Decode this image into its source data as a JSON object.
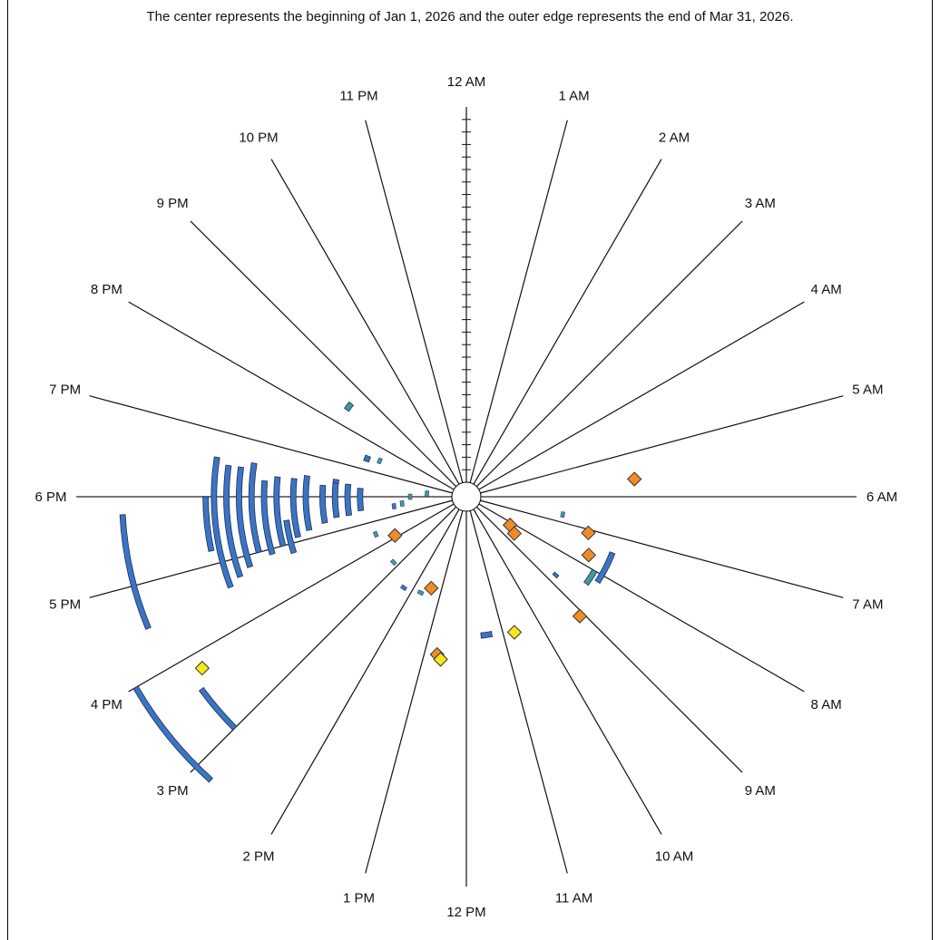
{
  "caption": "The center represents the beginning of Jan 1, 2026 and the outer edge represents the end of Mar 31, 2026.",
  "chart_data": {
    "type": "scatter",
    "radial_axis": {
      "start": "2026-01-01",
      "end": "2026-03-31"
    },
    "hour_labels": [
      "12 AM",
      "1 AM",
      "2 AM",
      "3 AM",
      "4 AM",
      "5 AM",
      "6 AM",
      "7 AM",
      "8 AM",
      "9 AM",
      "10 AM",
      "11 AM",
      "12 PM",
      "1 PM",
      "2 PM",
      "3 PM",
      "4 PM",
      "5 PM",
      "6 PM",
      "7 PM",
      "8 PM",
      "9 PM",
      "10 PM",
      "11 PM"
    ],
    "colors": {
      "spoke": "#111111",
      "spoke_major": "#777777",
      "blue": "#3b74c4",
      "teal": "#3f9a9a",
      "orange": "#f08c26",
      "yellow": "#f6e819"
    },
    "arcs": [
      {
        "hour_start": 16.5,
        "hour_end": 17.8,
        "radius_days": 79,
        "color": "blue"
      },
      {
        "hour_start": 14.8,
        "hour_end": 16.0,
        "radius_days": 88,
        "color": "blue"
      },
      {
        "hour_start": 15.0,
        "hour_end": 15.6,
        "radius_days": 75,
        "color": "blue"
      },
      {
        "hour_start": 16.6,
        "hour_end": 18.6,
        "radius_days": 57,
        "color": "blue"
      },
      {
        "hour_start": 16.7,
        "hour_end": 18.5,
        "radius_days": 54,
        "color": "blue"
      },
      {
        "hour_start": 16.8,
        "hour_end": 18.5,
        "radius_days": 51,
        "color": "blue"
      },
      {
        "hour_start": 17.0,
        "hour_end": 18.6,
        "radius_days": 48,
        "color": "blue"
      },
      {
        "hour_start": 16.9,
        "hour_end": 18.3,
        "radius_days": 45,
        "color": "blue"
      },
      {
        "hour_start": 17.0,
        "hour_end": 18.4,
        "radius_days": 42,
        "color": "blue"
      },
      {
        "hour_start": 17.1,
        "hour_end": 18.4,
        "radius_days": 38,
        "color": "blue"
      },
      {
        "hour_start": 17.2,
        "hour_end": 18.5,
        "radius_days": 35,
        "color": "blue"
      },
      {
        "hour_start": 17.3,
        "hour_end": 18.3,
        "radius_days": 31,
        "color": "blue"
      },
      {
        "hour_start": 17.4,
        "hour_end": 18.5,
        "radius_days": 28,
        "color": "blue"
      },
      {
        "hour_start": 17.4,
        "hour_end": 18.4,
        "radius_days": 25,
        "color": "blue"
      },
      {
        "hour_start": 17.5,
        "hour_end": 18.3,
        "radius_days": 22,
        "color": "blue"
      },
      {
        "hour_start": 17.2,
        "hour_end": 18.0,
        "radius_days": 59,
        "color": "blue"
      },
      {
        "hour_start": 16.8,
        "hour_end": 17.5,
        "radius_days": 40,
        "color": "blue"
      },
      {
        "hour_start": 18.4,
        "hour_end": 18.5,
        "radius_days": 28,
        "color": "blue"
      },
      {
        "hour_start": 7.4,
        "hour_end": 8.2,
        "radius_days": 34,
        "color": "blue"
      },
      {
        "hour_start": 8.0,
        "hour_end": 8.4,
        "radius_days": 32,
        "color": "teal"
      },
      {
        "hour_start": 11.3,
        "hour_end": 11.6,
        "radius_days": 30,
        "color": "blue"
      },
      {
        "hour_start": 8.7,
        "hour_end": 8.8,
        "radius_days": 25,
        "color": "blue"
      },
      {
        "hour_start": 19.3,
        "hour_end": 19.5,
        "radius_days": 22,
        "color": "blue"
      },
      {
        "hour_start": 20.4,
        "hour_end": 20.6,
        "radius_days": 32,
        "color": "teal"
      }
    ],
    "small_marks": [
      {
        "hour": 17.6,
        "radius_days": 12,
        "color": "teal"
      },
      {
        "hour": 18.0,
        "radius_days": 10,
        "color": "teal"
      },
      {
        "hour": 18.3,
        "radius_days": 6,
        "color": "teal"
      },
      {
        "hour": 17.5,
        "radius_days": 14,
        "color": "blue"
      },
      {
        "hour": 19.5,
        "radius_days": 19,
        "color": "teal"
      },
      {
        "hour": 16.5,
        "radius_days": 20,
        "color": "teal"
      },
      {
        "hour": 14.3,
        "radius_days": 23,
        "color": "blue"
      },
      {
        "hour": 13.7,
        "radius_days": 22,
        "color": "teal"
      },
      {
        "hour": 6.7,
        "radius_days": 20,
        "color": "teal"
      },
      {
        "hour": 15.2,
        "radius_days": 20,
        "color": "teal"
      }
    ],
    "diamonds": [
      {
        "hour": 5.6,
        "radius_days": 37,
        "color": "orange"
      },
      {
        "hour": 7.1,
        "radius_days": 27,
        "color": "orange"
      },
      {
        "hour": 7.7,
        "radius_days": 29,
        "color": "orange"
      },
      {
        "hour": 8.2,
        "radius_days": 9,
        "color": "orange"
      },
      {
        "hour": 8.5,
        "radius_days": 11,
        "color": "orange"
      },
      {
        "hour": 9.1,
        "radius_days": 36,
        "color": "orange"
      },
      {
        "hour": 16.1,
        "radius_days": 16,
        "color": "orange"
      },
      {
        "hour": 13.4,
        "radius_days": 20,
        "color": "orange"
      },
      {
        "hour": 12.7,
        "radius_days": 35,
        "color": "orange"
      },
      {
        "hour": 12.6,
        "radius_days": 36,
        "color": "yellow"
      },
      {
        "hour": 10.7,
        "radius_days": 31,
        "color": "yellow"
      },
      {
        "hour": 15.8,
        "radius_days": 72,
        "color": "yellow"
      }
    ]
  }
}
